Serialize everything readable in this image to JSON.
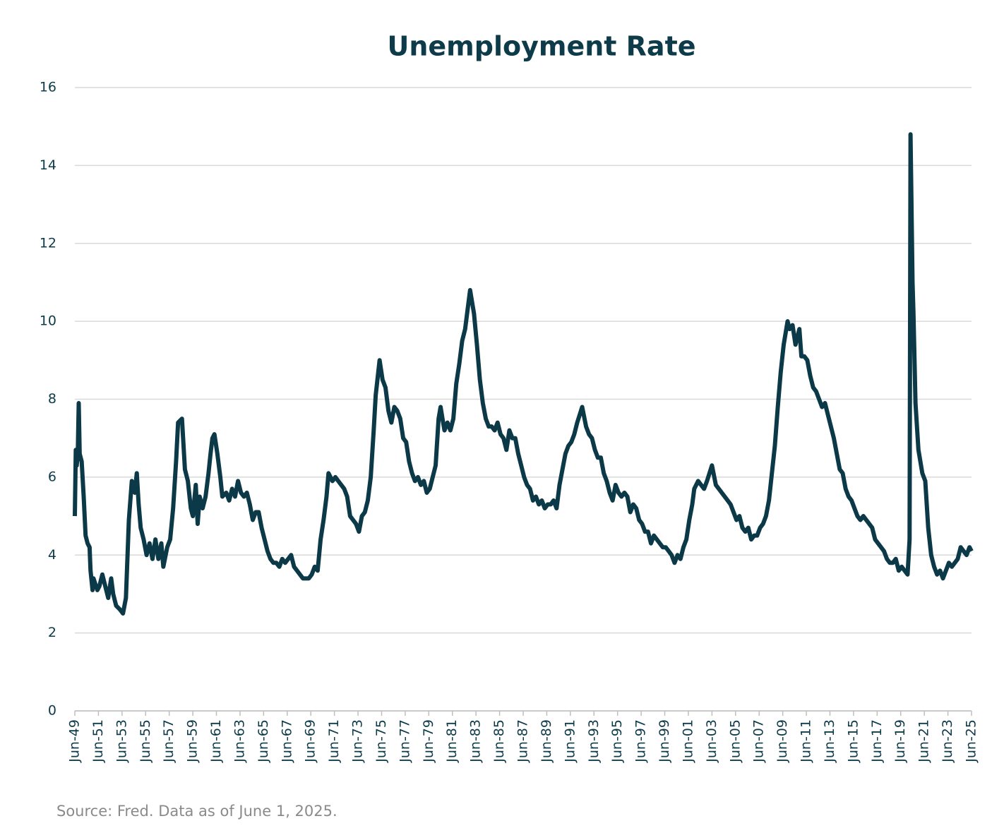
{
  "chart_data": {
    "type": "line",
    "title": "Unemployment Rate",
    "source": "Source: Fred. Data as of June 1, 2025.",
    "color": "#0c3947",
    "grid": true,
    "xlim": [
      1949.42,
      2025.42
    ],
    "ylim": [
      0,
      16
    ],
    "yticks": [
      0,
      2,
      4,
      6,
      8,
      10,
      12,
      14,
      16
    ],
    "xticks": [
      {
        "value": 1949.42,
        "label": "Jun-49"
      },
      {
        "value": 1951.42,
        "label": "Jun-51"
      },
      {
        "value": 1953.42,
        "label": "Jun-53"
      },
      {
        "value": 1955.42,
        "label": "Jun-55"
      },
      {
        "value": 1957.42,
        "label": "Jun-57"
      },
      {
        "value": 1959.42,
        "label": "Jun-59"
      },
      {
        "value": 1961.42,
        "label": "Jun-61"
      },
      {
        "value": 1963.42,
        "label": "Jun-63"
      },
      {
        "value": 1965.42,
        "label": "Jun-65"
      },
      {
        "value": 1967.42,
        "label": "Jun-67"
      },
      {
        "value": 1969.42,
        "label": "Jun-69"
      },
      {
        "value": 1971.42,
        "label": "Jun-71"
      },
      {
        "value": 1973.42,
        "label": "Jun-73"
      },
      {
        "value": 1975.42,
        "label": "Jun-75"
      },
      {
        "value": 1977.42,
        "label": "Jun-77"
      },
      {
        "value": 1979.42,
        "label": "Jun-79"
      },
      {
        "value": 1981.42,
        "label": "Jun-81"
      },
      {
        "value": 1983.42,
        "label": "Jun-83"
      },
      {
        "value": 1985.42,
        "label": "Jun-85"
      },
      {
        "value": 1987.42,
        "label": "Jun-87"
      },
      {
        "value": 1989.42,
        "label": "Jun-89"
      },
      {
        "value": 1991.42,
        "label": "Jun-91"
      },
      {
        "value": 1993.42,
        "label": "Jun-93"
      },
      {
        "value": 1995.42,
        "label": "Jun-95"
      },
      {
        "value": 1997.42,
        "label": "Jun-97"
      },
      {
        "value": 1999.42,
        "label": "Jun-99"
      },
      {
        "value": 2001.42,
        "label": "Jun-01"
      },
      {
        "value": 2003.42,
        "label": "Jun-03"
      },
      {
        "value": 2005.42,
        "label": "Jun-05"
      },
      {
        "value": 2007.42,
        "label": "Jun-07"
      },
      {
        "value": 2009.42,
        "label": "Jun-09"
      },
      {
        "value": 2011.42,
        "label": "Jun-11"
      },
      {
        "value": 2013.42,
        "label": "Jun-13"
      },
      {
        "value": 2015.42,
        "label": "Jun-15"
      },
      {
        "value": 2017.42,
        "label": "Jun-17"
      },
      {
        "value": 2019.42,
        "label": "Jun-19"
      },
      {
        "value": 2021.42,
        "label": "Jun-21"
      },
      {
        "value": 2023.42,
        "label": "Jun-23"
      },
      {
        "value": 2025.42,
        "label": "Jun-25"
      }
    ],
    "x": [
      1949.42,
      1949.5,
      1949.58,
      1949.67,
      1949.75,
      1949.83,
      1950.0,
      1950.17,
      1950.33,
      1950.5,
      1950.67,
      1950.75,
      1950.92,
      1951.0,
      1951.33,
      1951.5,
      1951.75,
      1952.0,
      1952.25,
      1952.5,
      1952.67,
      1952.92,
      1953.25,
      1953.5,
      1953.75,
      1954.0,
      1954.25,
      1954.5,
      1954.67,
      1954.83,
      1955.0,
      1955.25,
      1955.5,
      1955.75,
      1956.0,
      1956.25,
      1956.5,
      1956.75,
      1956.92,
      1957.25,
      1957.5,
      1957.75,
      1958.0,
      1958.17,
      1958.5,
      1958.75,
      1959.0,
      1959.25,
      1959.42,
      1959.67,
      1959.83,
      1960.0,
      1960.25,
      1960.5,
      1960.75,
      1960.92,
      1961.08,
      1961.25,
      1961.5,
      1961.75,
      1961.92,
      1962.25,
      1962.5,
      1962.75,
      1963.0,
      1963.25,
      1963.5,
      1963.75,
      1964.0,
      1964.25,
      1964.5,
      1964.75,
      1965.0,
      1965.25,
      1965.5,
      1965.75,
      1966.0,
      1966.25,
      1966.5,
      1966.75,
      1967.0,
      1967.25,
      1967.5,
      1967.75,
      1968.0,
      1968.25,
      1968.5,
      1968.75,
      1969.0,
      1969.25,
      1969.5,
      1969.75,
      1970.0,
      1970.25,
      1970.5,
      1970.75,
      1970.92,
      1971.25,
      1971.5,
      1971.75,
      1972.0,
      1972.25,
      1972.5,
      1972.75,
      1973.0,
      1973.25,
      1973.5,
      1973.75,
      1974.0,
      1974.25,
      1974.5,
      1974.75,
      1974.92,
      1975.25,
      1975.5,
      1975.75,
      1976.0,
      1976.25,
      1976.5,
      1976.75,
      1977.0,
      1977.25,
      1977.5,
      1977.75,
      1978.0,
      1978.25,
      1978.5,
      1978.75,
      1979.0,
      1979.25,
      1979.5,
      1979.75,
      1980.0,
      1980.25,
      1980.42,
      1980.58,
      1980.75,
      1981.0,
      1981.25,
      1981.5,
      1981.75,
      1982.0,
      1982.25,
      1982.5,
      1982.92,
      1983.25,
      1983.5,
      1983.75,
      1984.0,
      1984.25,
      1984.5,
      1984.75,
      1985.0,
      1985.25,
      1985.5,
      1985.75,
      1986.0,
      1986.25,
      1986.5,
      1986.75,
      1987.0,
      1987.25,
      1987.5,
      1987.75,
      1988.0,
      1988.25,
      1988.5,
      1988.75,
      1989.0,
      1989.25,
      1989.5,
      1989.75,
      1990.0,
      1990.25,
      1990.5,
      1990.75,
      1991.0,
      1991.25,
      1991.5,
      1991.75,
      1992.0,
      1992.42,
      1992.75,
      1993.0,
      1993.25,
      1993.5,
      1993.75,
      1994.0,
      1994.25,
      1994.5,
      1994.75,
      1995.0,
      1995.25,
      1995.5,
      1995.75,
      1996.0,
      1996.25,
      1996.5,
      1996.75,
      1997.0,
      1997.25,
      1997.5,
      1997.75,
      1998.0,
      1998.25,
      1998.5,
      1998.75,
      1999.0,
      1999.25,
      1999.5,
      1999.75,
      2000.0,
      2000.25,
      2000.5,
      2000.75,
      2001.0,
      2001.25,
      2001.5,
      2001.75,
      2001.92,
      2002.25,
      2002.5,
      2002.75,
      2003.0,
      2003.42,
      2003.75,
      2004.0,
      2004.25,
      2004.5,
      2004.75,
      2005.0,
      2005.25,
      2005.5,
      2005.75,
      2006.0,
      2006.25,
      2006.5,
      2006.75,
      2007.0,
      2007.25,
      2007.5,
      2007.75,
      2008.0,
      2008.25,
      2008.5,
      2008.75,
      2009.0,
      2009.25,
      2009.5,
      2009.83,
      2010.0,
      2010.25,
      2010.5,
      2010.83,
      2011.0,
      2011.25,
      2011.5,
      2011.75,
      2012.0,
      2012.25,
      2012.5,
      2012.75,
      2013.0,
      2013.25,
      2013.5,
      2013.75,
      2014.0,
      2014.25,
      2014.5,
      2014.75,
      2015.0,
      2015.25,
      2015.5,
      2015.75,
      2016.0,
      2016.25,
      2016.5,
      2016.75,
      2017.0,
      2017.25,
      2017.5,
      2017.75,
      2018.0,
      2018.25,
      2018.5,
      2018.75,
      2019.0,
      2019.25,
      2019.5,
      2019.75,
      2020.0,
      2020.17,
      2020.25,
      2020.42,
      2020.5,
      2020.67,
      2020.92,
      2021.25,
      2021.5,
      2021.75,
      2022.0,
      2022.25,
      2022.5,
      2022.75,
      2023.0,
      2023.25,
      2023.5,
      2023.75,
      2024.0,
      2024.25,
      2024.5,
      2024.75,
      2025.0,
      2025.25,
      2025.42
    ],
    "values": [
      5.0,
      6.7,
      6.3,
      6.6,
      7.9,
      6.6,
      6.4,
      5.5,
      4.5,
      4.3,
      4.2,
      3.6,
      3.1,
      3.4,
      3.1,
      3.2,
      3.5,
      3.2,
      2.9,
      3.4,
      3.0,
      2.7,
      2.6,
      2.5,
      2.9,
      4.9,
      5.9,
      5.6,
      6.1,
      5.3,
      4.7,
      4.4,
      4.0,
      4.3,
      3.9,
      4.4,
      3.9,
      4.3,
      3.7,
      4.2,
      4.4,
      5.2,
      6.4,
      7.4,
      7.5,
      6.2,
      5.9,
      5.2,
      5.0,
      5.8,
      4.8,
      5.5,
      5.2,
      5.5,
      6.1,
      6.6,
      7.0,
      7.1,
      6.6,
      6.0,
      5.5,
      5.6,
      5.4,
      5.7,
      5.5,
      5.9,
      5.6,
      5.5,
      5.6,
      5.3,
      4.9,
      5.1,
      5.1,
      4.7,
      4.4,
      4.1,
      3.9,
      3.8,
      3.8,
      3.7,
      3.9,
      3.8,
      3.9,
      4.0,
      3.7,
      3.6,
      3.5,
      3.4,
      3.4,
      3.4,
      3.5,
      3.7,
      3.6,
      4.4,
      4.9,
      5.5,
      6.1,
      5.9,
      6.0,
      5.9,
      5.8,
      5.7,
      5.5,
      5.0,
      4.9,
      4.8,
      4.6,
      5.0,
      5.1,
      5.4,
      6.0,
      7.2,
      8.1,
      9.0,
      8.5,
      8.3,
      7.7,
      7.4,
      7.8,
      7.7,
      7.5,
      7.0,
      6.9,
      6.4,
      6.1,
      5.9,
      6.0,
      5.8,
      5.9,
      5.6,
      5.7,
      6.0,
      6.3,
      7.5,
      7.8,
      7.5,
      7.2,
      7.4,
      7.2,
      7.5,
      8.4,
      8.9,
      9.5,
      9.8,
      10.8,
      10.2,
      9.4,
      8.5,
      7.9,
      7.5,
      7.3,
      7.3,
      7.2,
      7.4,
      7.1,
      7.0,
      6.7,
      7.2,
      7.0,
      7.0,
      6.6,
      6.3,
      6.0,
      5.8,
      5.7,
      5.4,
      5.5,
      5.3,
      5.4,
      5.2,
      5.3,
      5.3,
      5.4,
      5.2,
      5.8,
      6.2,
      6.6,
      6.8,
      6.9,
      7.1,
      7.4,
      7.8,
      7.3,
      7.1,
      7.0,
      6.7,
      6.5,
      6.5,
      6.1,
      5.9,
      5.6,
      5.4,
      5.8,
      5.6,
      5.5,
      5.6,
      5.5,
      5.1,
      5.3,
      5.2,
      4.9,
      4.8,
      4.6,
      4.6,
      4.3,
      4.5,
      4.4,
      4.3,
      4.2,
      4.2,
      4.1,
      4.0,
      3.8,
      4.0,
      3.9,
      4.2,
      4.4,
      4.9,
      5.3,
      5.7,
      5.9,
      5.8,
      5.7,
      5.9,
      6.3,
      5.8,
      5.7,
      5.6,
      5.5,
      5.4,
      5.3,
      5.1,
      4.9,
      5.0,
      4.7,
      4.6,
      4.7,
      4.4,
      4.5,
      4.5,
      4.7,
      4.8,
      5.0,
      5.4,
      6.1,
      6.8,
      7.8,
      8.7,
      9.4,
      10.0,
      9.8,
      9.9,
      9.4,
      9.8,
      9.1,
      9.1,
      9.0,
      8.6,
      8.3,
      8.2,
      8.0,
      7.8,
      7.9,
      7.6,
      7.3,
      7.0,
      6.6,
      6.2,
      6.1,
      5.7,
      5.5,
      5.4,
      5.2,
      5.0,
      4.9,
      5.0,
      4.9,
      4.8,
      4.7,
      4.4,
      4.3,
      4.2,
      4.1,
      3.9,
      3.8,
      3.8,
      3.9,
      3.6,
      3.7,
      3.6,
      3.5,
      4.4,
      14.8,
      11.0,
      10.2,
      7.9,
      6.7,
      6.1,
      5.9,
      4.7,
      4.0,
      3.7,
      3.5,
      3.6,
      3.4,
      3.6,
      3.8,
      3.7,
      3.8,
      3.9,
      4.2,
      4.1,
      4.0,
      4.2,
      4.1
    ]
  }
}
